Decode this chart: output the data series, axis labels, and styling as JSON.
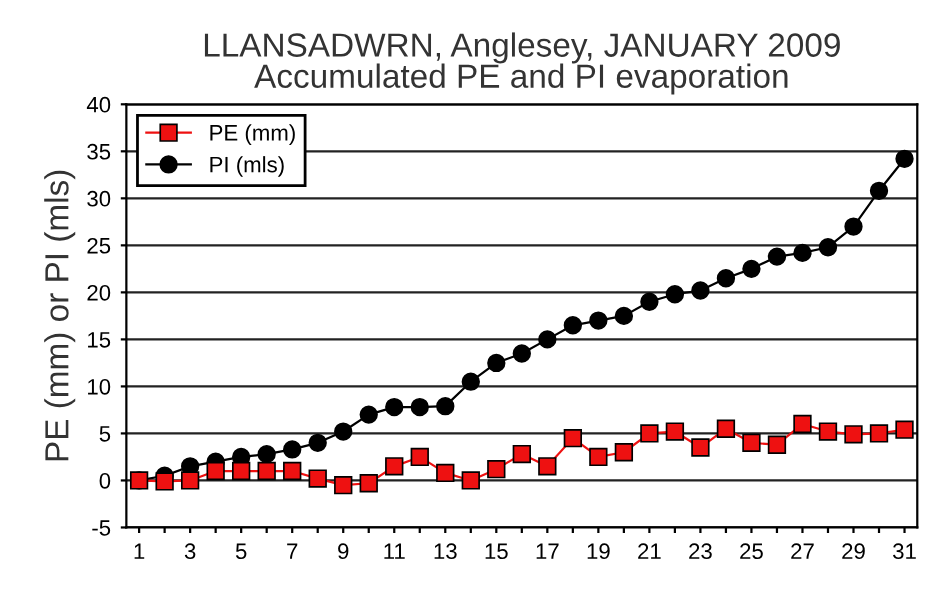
{
  "chart_data": {
    "type": "line",
    "title": "LLANSADWRN, Anglesey, JANUARY 2009\nAccumulated PE and PI evaporation",
    "ylabel": "PE (mm) or PI (mls)",
    "categories": [
      "1",
      null,
      "3",
      null,
      "5",
      null,
      "7",
      null,
      "9",
      null,
      "11",
      null,
      "13",
      null,
      "15",
      null,
      "17",
      null,
      "19",
      null,
      "21",
      null,
      "23",
      null,
      "25",
      null,
      "27",
      null,
      "29",
      null,
      "31"
    ],
    "series": [
      {
        "name": "PE (mm)",
        "color": "#ee1111",
        "marker": "square",
        "values": [
          0,
          -0.1,
          0,
          1,
          1,
          1,
          1,
          0.2,
          -0.5,
          -0.3,
          1.5,
          2.5,
          0.8,
          0,
          1.2,
          2.8,
          1.5,
          4.5,
          2.5,
          3,
          5,
          5.2,
          3.5,
          5.5,
          4,
          3.8,
          6,
          5.2,
          4.9,
          5,
          5.4
        ]
      },
      {
        "name": "PI (mls)",
        "color": "#000000",
        "marker": "circle",
        "values": [
          0,
          0.5,
          1.5,
          2,
          2.5,
          2.8,
          3.3,
          4,
          5.2,
          7,
          7.8,
          7.8,
          7.9,
          10.5,
          12.5,
          13.5,
          15,
          16.5,
          17,
          17.5,
          19,
          19.8,
          20.2,
          21.5,
          22.5,
          23.8,
          24.2,
          24.8,
          27,
          30.8,
          34.2
        ]
      }
    ],
    "ylim": [
      -5,
      40
    ],
    "yticks": [
      -5,
      0,
      5,
      10,
      15,
      20,
      25,
      30,
      35,
      40
    ],
    "grid": "y",
    "legend": "top left",
    "line_style": "solid"
  }
}
